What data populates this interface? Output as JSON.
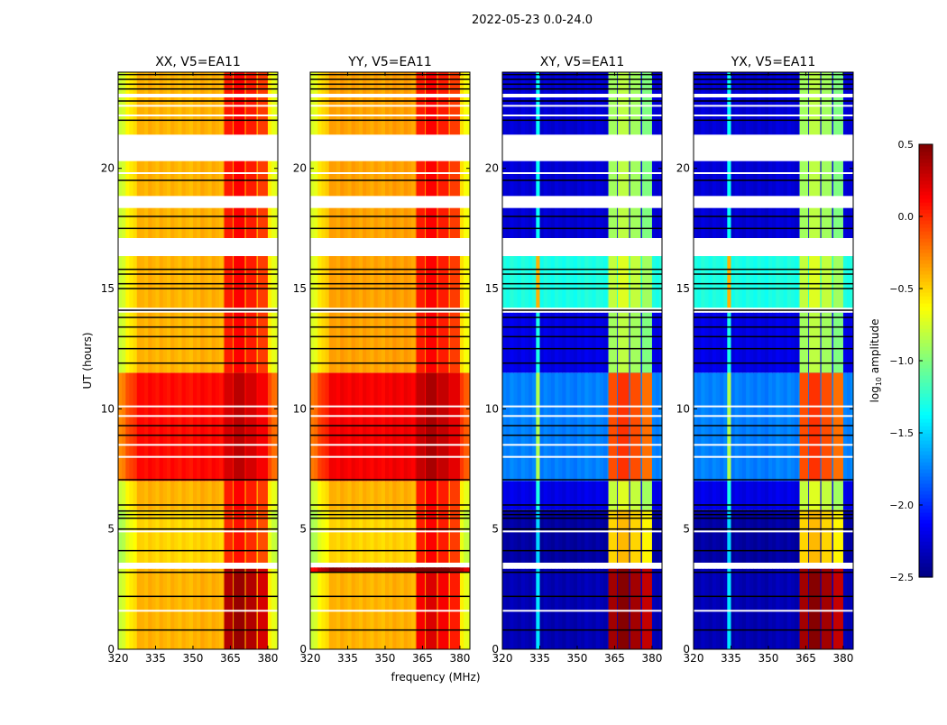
{
  "chart_data": {
    "type": "heatmap",
    "title": "2022-05-23 0.0-24.0",
    "xlabel": "frequency (MHz)",
    "ylabel": "UT (hours)",
    "xlim": [
      320,
      384
    ],
    "ylim": [
      0,
      24
    ],
    "xticks": [
      "320",
      "335",
      "350",
      "365",
      "380"
    ],
    "xtick_values": [
      320,
      335,
      350,
      365,
      380
    ],
    "yticks": [
      "0",
      "5",
      "10",
      "15",
      "20"
    ],
    "ytick_values": [
      0,
      5,
      10,
      15,
      20
    ],
    "colorbar": {
      "label": "log10 amplitude",
      "label_main": "log",
      "label_sub": "10",
      "label_rest": " amplitude",
      "range": [
        -2.5,
        0.5
      ],
      "ticks": [
        "0.5",
        "0.0",
        "−0.5",
        "−1.0",
        "−1.5",
        "−2.0",
        "−2.5"
      ],
      "tick_values": [
        0.5,
        0.0,
        -0.5,
        -1.0,
        -1.5,
        -2.0,
        -2.5
      ],
      "colormap": "jet"
    },
    "rfi_channels_mhz": [
      [
        362.5,
        366
      ],
      [
        366.3,
        370.8
      ],
      [
        371.2,
        375.5
      ],
      [
        376,
        380
      ]
    ],
    "flagged_time_ranges": [
      [
        3.35,
        3.6
      ],
      [
        14.0,
        14.2
      ],
      [
        16.35,
        17.1
      ],
      [
        18.35,
        18.85
      ],
      [
        20.3,
        21.4
      ],
      [
        22.95,
        23.1
      ]
    ],
    "black_lines": [
      0.8,
      2.2,
      3.2,
      4.1,
      5.0,
      5.45,
      5.6,
      5.75,
      6.0,
      7.05,
      8.9,
      9.3,
      11.9,
      12.5,
      13.0,
      13.4,
      13.8,
      14.1,
      15.0,
      15.2,
      15.6,
      15.8,
      17.5,
      18.0,
      19.5,
      22.0,
      22.8,
      23.3,
      23.5,
      23.7,
      23.9
    ],
    "white_lines": [
      1.6,
      4.9,
      8.0,
      8.5,
      9.7,
      10.1,
      19.8,
      22.2,
      22.6
    ],
    "panels": [
      {
        "title": "XX, V5=EA11",
        "kind": "parallel",
        "segments": [
          {
            "t": [
              0,
              3.35
            ],
            "base": -0.4,
            "rfi": 0.35
          },
          {
            "t": [
              3.6,
              5.8
            ],
            "base": -0.5,
            "rfi": 0.0
          },
          {
            "t": [
              5.8,
              7.0
            ],
            "base": -0.4,
            "rfi": 0.05
          },
          {
            "t": [
              7.0,
              11.5
            ],
            "base": 0.1,
            "rfi": 0.25
          },
          {
            "t": [
              11.5,
              24
            ],
            "base": -0.4,
            "rfi": 0.05
          }
        ]
      },
      {
        "title": "YY, V5=EA11",
        "kind": "parallel",
        "segments": [
          {
            "t": [
              0,
              3.2
            ],
            "base": -0.4,
            "rfi": 0.15
          },
          {
            "t": [
              3.2,
              3.4
            ],
            "base": 0.5,
            "rfi": 0.5
          },
          {
            "t": [
              3.6,
              5.8
            ],
            "base": -0.5,
            "rfi": 0.05
          },
          {
            "t": [
              5.8,
              7.0
            ],
            "base": -0.4,
            "rfi": 0.05
          },
          {
            "t": [
              7.0,
              11.5
            ],
            "base": 0.15,
            "rfi": 0.3
          },
          {
            "t": [
              11.5,
              24
            ],
            "base": -0.35,
            "rfi": 0.05
          }
        ]
      },
      {
        "title": "XY, V5=EA11",
        "kind": "cross",
        "segments": [
          {
            "t": [
              0,
              3.35
            ],
            "base": -2.35,
            "rfi": 0.4
          },
          {
            "t": [
              3.6,
              5.8
            ],
            "base": -2.4,
            "rfi": -0.5
          },
          {
            "t": [
              5.8,
              7.0
            ],
            "base": -2.2,
            "rfi": -0.8
          },
          {
            "t": [
              7.0,
              11.5
            ],
            "base": -1.75,
            "rfi": -0.1
          },
          {
            "t": [
              11.5,
              14.0
            ],
            "base": -2.2,
            "rfi": -0.9
          },
          {
            "t": [
              14.2,
              16.35
            ],
            "base": -1.3,
            "rfi": -0.8
          },
          {
            "t": [
              17.1,
              24
            ],
            "base": -2.25,
            "rfi": -0.9
          }
        ]
      },
      {
        "title": "YX, V5=EA11",
        "kind": "cross",
        "segments": [
          {
            "t": [
              0,
              3.35
            ],
            "base": -2.35,
            "rfi": 0.4
          },
          {
            "t": [
              3.6,
              5.8
            ],
            "base": -2.4,
            "rfi": -0.5
          },
          {
            "t": [
              5.8,
              7.0
            ],
            "base": -2.2,
            "rfi": -0.8
          },
          {
            "t": [
              7.0,
              11.5
            ],
            "base": -1.75,
            "rfi": -0.1
          },
          {
            "t": [
              11.5,
              14.0
            ],
            "base": -2.2,
            "rfi": -0.9
          },
          {
            "t": [
              14.2,
              16.35
            ],
            "base": -1.3,
            "rfi": -0.8
          },
          {
            "t": [
              17.1,
              24
            ],
            "base": -2.25,
            "rfi": -0.9
          }
        ]
      }
    ]
  }
}
